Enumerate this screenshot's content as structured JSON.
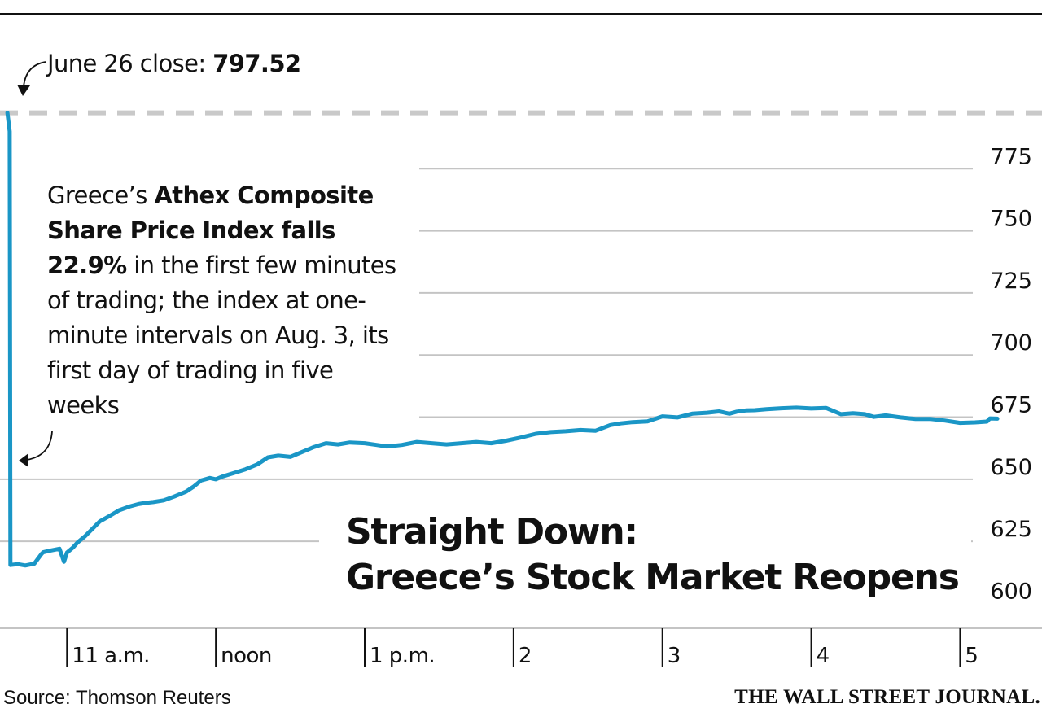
{
  "chart_data": {
    "type": "line",
    "title": "Straight Down:",
    "subtitle": "Greece’s Stock Market Reopens",
    "reference": {
      "label": "June 26 close: ",
      "value_text": "797.52",
      "value": 797.52
    },
    "annotation": {
      "segments": [
        {
          "text": "Greece’s ",
          "bold": false
        },
        {
          "text": "Athex Composite Share Price Index falls 22.9%",
          "bold": true
        },
        {
          "text": " in the first few minutes of trading; the index at one-minute intervals on Aug. 3, its first day of trading in five weeks",
          "bold": false
        }
      ]
    },
    "y_ticks": [
      "775",
      "750",
      "725",
      "700",
      "675",
      "650",
      "625",
      "600"
    ],
    "y_tick_values": [
      775,
      750,
      725,
      700,
      675,
      650,
      625,
      600
    ],
    "x_ticks": [
      "11 a.m.",
      "noon",
      "1 p.m.",
      "2",
      "3",
      "4",
      "5"
    ],
    "x_tick_values": [
      11,
      12,
      13,
      14,
      15,
      16,
      17
    ],
    "ylim": [
      590,
      800
    ],
    "xlim": [
      10.55,
      17.55
    ],
    "grid": true,
    "series": [
      {
        "color": "#1a96c6",
        "x": [
          10.6,
          10.615,
          10.62,
          10.67,
          10.72,
          10.78,
          10.83,
          10.84,
          10.88,
          10.95,
          10.98,
          11.0,
          11.04,
          11.07,
          11.12,
          11.17,
          11.22,
          11.28,
          11.35,
          11.42,
          11.48,
          11.53,
          11.58,
          11.65,
          11.72,
          11.8,
          11.85,
          11.9,
          11.96,
          12.0,
          12.04,
          12.12,
          12.2,
          12.28,
          12.35,
          12.42,
          12.5,
          12.58,
          12.66,
          12.74,
          12.82,
          12.9,
          13.0,
          13.08,
          13.15,
          13.25,
          13.35,
          13.45,
          13.55,
          13.65,
          13.75,
          13.85,
          13.95,
          14.05,
          14.15,
          14.25,
          14.35,
          14.45,
          14.55,
          14.65,
          14.72,
          14.8,
          14.9,
          15.0,
          15.1,
          15.2,
          15.3,
          15.38,
          15.45,
          15.5,
          15.56,
          15.62,
          15.7,
          15.8,
          15.9,
          16.0,
          16.1,
          16.2,
          16.28,
          16.36,
          16.42,
          16.5,
          16.6,
          16.7,
          16.8,
          16.9,
          17.0,
          17.1,
          17.18,
          17.2,
          17.25
        ],
        "y": [
          797.5,
          790,
          615.5,
          615.8,
          615.3,
          616,
          620,
          620.6,
          621.2,
          622,
          616.8,
          620.5,
          622.5,
          624.5,
          627,
          630,
          633,
          635,
          637.5,
          639,
          640,
          640.5,
          640.8,
          641.5,
          643,
          645,
          647,
          649.5,
          650.5,
          650,
          651,
          652.5,
          654,
          656,
          658.8,
          659.5,
          659,
          661,
          663,
          664.5,
          664,
          664.8,
          664.5,
          663.8,
          663.2,
          663.8,
          665,
          664.5,
          664,
          664.5,
          665,
          664.5,
          665.5,
          666.8,
          668.3,
          669,
          669.3,
          669.8,
          669.5,
          671.8,
          672.5,
          673,
          673.3,
          675.3,
          674.9,
          676.4,
          676.8,
          677.3,
          676.4,
          677.2,
          677.7,
          677.8,
          678.2,
          678.6,
          678.8,
          678.5,
          678.7,
          676.2,
          676.6,
          676.2,
          675.1,
          675.7,
          674.9,
          674.3,
          674.3,
          673.6,
          672.7,
          672.9,
          673.2,
          674.5,
          674.4
        ]
      }
    ]
  },
  "source": "Source: Thomson Reuters",
  "brand": "THE WALL STREET JOURNAL."
}
